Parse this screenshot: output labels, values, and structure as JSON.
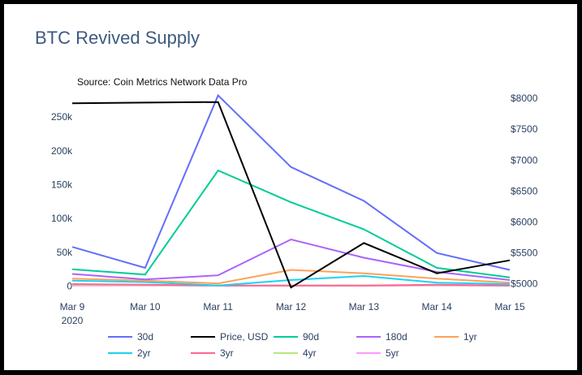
{
  "chart_data": {
    "type": "line",
    "title": "BTC Revived Supply",
    "source_note": "Source: Coin Metrics Network Data Pro",
    "x": [
      "Mar 9",
      "Mar 10",
      "Mar 11",
      "Mar 12",
      "Mar 13",
      "Mar 14",
      "Mar 15"
    ],
    "x_tick_labels": [
      "Mar 9",
      "Mar 10",
      "Mar 11",
      "Mar 12",
      "Mar 13",
      "Mar 14",
      "Mar 15"
    ],
    "x_year_label": "2020",
    "y_left": {
      "ylim": [
        -3000,
        285000
      ],
      "ticks": [
        0,
        50000,
        100000,
        150000,
        200000,
        250000
      ],
      "tick_labels": [
        "0",
        "50k",
        "100k",
        "150k",
        "200k",
        "250k"
      ]
    },
    "y_right": {
      "ylim": [
        4930,
        8080
      ],
      "ticks": [
        5000,
        5500,
        6000,
        6500,
        7000,
        7500,
        8000
      ],
      "tick_labels": [
        "$5000",
        "$5500",
        "$6000",
        "$6500",
        "$7000",
        "$7500",
        "$8000"
      ]
    },
    "grid": false,
    "legend_position": "bottom",
    "series": [
      {
        "name": "30d",
        "axis": "left",
        "color": "#636efa",
        "values": [
          58000,
          27000,
          282000,
          176000,
          126000,
          49000,
          24000
        ]
      },
      {
        "name": "Price, USD",
        "axis": "right",
        "color": "#000000",
        "values": [
          7920,
          7930,
          7940,
          4940,
          5660,
          5170,
          5380
        ]
      },
      {
        "name": "90d",
        "axis": "left",
        "color": "#00cc96",
        "values": [
          25000,
          17000,
          171000,
          124000,
          84000,
          27000,
          13000
        ]
      },
      {
        "name": "180d",
        "axis": "left",
        "color": "#ab63fa",
        "values": [
          18000,
          10000,
          16000,
          69000,
          42000,
          21000,
          9000
        ]
      },
      {
        "name": "1yr",
        "axis": "left",
        "color": "#ffa15a",
        "values": [
          11000,
          8000,
          4000,
          24000,
          19000,
          11000,
          5000
        ]
      },
      {
        "name": "2yr",
        "axis": "left",
        "color": "#19d3f3",
        "values": [
          8000,
          6000,
          1000,
          9000,
          15000,
          5000,
          3000
        ]
      },
      {
        "name": "3yr",
        "axis": "left",
        "color": "#ff6692",
        "values": [
          3000,
          2000,
          1000,
          1000,
          1000,
          2000,
          1000
        ]
      },
      {
        "name": "4yr",
        "axis": "left",
        "color": "#b6e880",
        "values": [
          2000,
          1500,
          800,
          1000,
          800,
          1500,
          800
        ]
      },
      {
        "name": "5yr",
        "axis": "left",
        "color": "#ff97ff",
        "values": [
          1000,
          800,
          500,
          500,
          500,
          1000,
          500
        ]
      }
    ]
  }
}
